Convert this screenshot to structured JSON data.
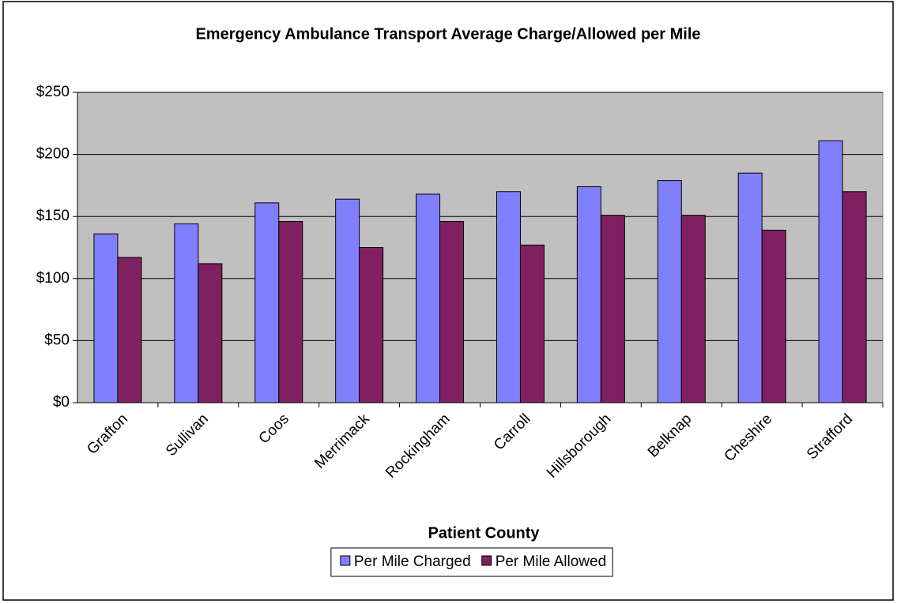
{
  "chart_data": {
    "type": "bar",
    "title": "Emergency Ambulance Transport Average Charge/Allowed per Mile",
    "x_label": "Patient County",
    "categories": [
      "Grafton",
      "Sullivan",
      "Coos",
      "Merrimack",
      "Rockingham",
      "Carroll",
      "Hillsborough",
      "Belknap",
      "Cheshire",
      "Strafford"
    ],
    "series": [
      {
        "name": "Per Mile Charged",
        "color": "#8080ff",
        "values": [
          136,
          144,
          161,
          164,
          168,
          170,
          174,
          179,
          185,
          211
        ]
      },
      {
        "name": "Per Mile Allowed",
        "color": "#802060",
        "values": [
          117,
          112,
          146,
          125,
          146,
          127,
          151,
          151,
          139,
          170
        ]
      }
    ],
    "ylim": [
      0,
      250
    ],
    "yticks": [
      {
        "value": 0,
        "label": "$0"
      },
      {
        "value": 50,
        "label": "$50"
      },
      {
        "value": 100,
        "label": "$100"
      },
      {
        "value": 150,
        "label": "$150"
      },
      {
        "value": 200,
        "label": "$200"
      },
      {
        "value": 250,
        "label": "$250"
      }
    ],
    "grid": true,
    "legend": "bottom",
    "background": "#c0c0c0"
  }
}
